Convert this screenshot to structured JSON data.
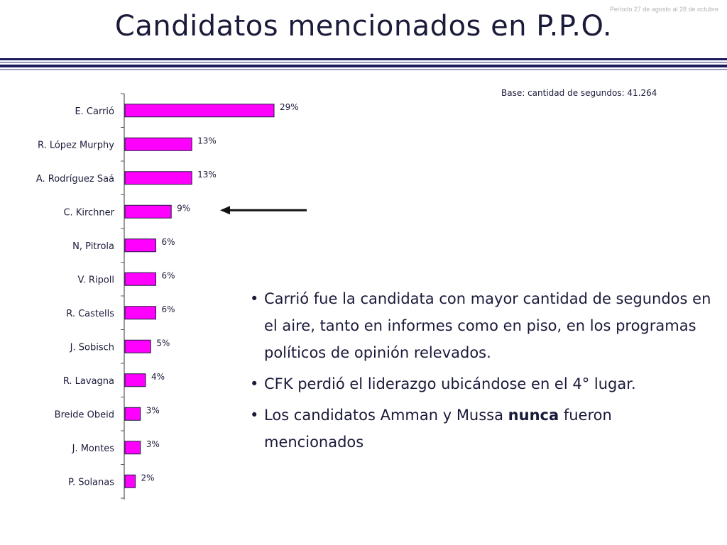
{
  "header": {
    "period": "Período 27 de agosto al 28 de octubre",
    "title": "Candidatos mencionados en P.P.O."
  },
  "colors": {
    "bar": "#ff00ff",
    "text": "#1a1a3a",
    "rule_dark": "#1a1a5e",
    "rule_light": "#9a9abf"
  },
  "base_note": "Base: cantidad de segundos: 41.264",
  "chart_data": {
    "type": "bar",
    "orientation": "horizontal",
    "categories": [
      "E. Carrió",
      "R. López Murphy",
      "A. Rodríguez Saá",
      "C. Kirchner",
      "N, Pitrola",
      "V. Ripoll",
      "R. Castells",
      "J. Sobisch",
      "R. Lavagna",
      "Breide Obeid",
      "J. Montes",
      "P. Solanas"
    ],
    "values": [
      29,
      13,
      13,
      9,
      6,
      6,
      6,
      5,
      4,
      3,
      3,
      2
    ],
    "value_labels": [
      "29%",
      "13%",
      "13%",
      "9%",
      "6%",
      "6%",
      "6%",
      "5%",
      "4%",
      "3%",
      "3%",
      "2%"
    ],
    "xlim": [
      0,
      29
    ],
    "highlight": {
      "category": "C. Kirchner",
      "marker": "arrow"
    }
  },
  "bullets": [
    {
      "segments": [
        {
          "text": "Carrió fue la candidata con mayor cantidad de segundos en el aire, tanto en informes como en piso, en los programas políticos de opinión relevados."
        }
      ]
    },
    {
      "segments": [
        {
          "text": "CFK perdió el liderazgo ubicándose en el 4° lugar."
        }
      ]
    },
    {
      "segments": [
        {
          "text": "Los candidatos Amman y Mussa "
        },
        {
          "text": "nunca",
          "bold": true
        },
        {
          "text": " fueron mencionados"
        }
      ]
    }
  ],
  "bullet_glyph": "•"
}
